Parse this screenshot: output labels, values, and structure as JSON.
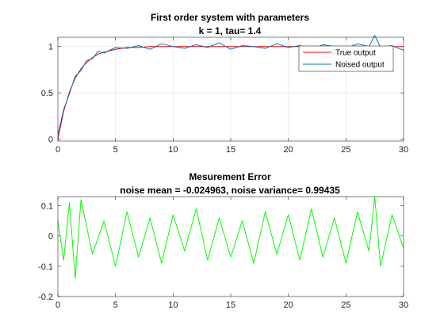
{
  "chart_data": [
    {
      "type": "line",
      "title": "First order system with parameters",
      "subtitle": "k = 1, tau= 1.4",
      "xlabel": "",
      "ylabel": "",
      "xlim": [
        0,
        30
      ],
      "ylim": [
        -0.02,
        1.1
      ],
      "xticks": [
        0,
        5,
        10,
        15,
        20,
        25,
        30
      ],
      "yticks": [
        0,
        0.5,
        1
      ],
      "grid": true,
      "legend_position": "top-right",
      "model": {
        "k": 1,
        "tau": 1.4
      },
      "series": [
        {
          "name": "True output",
          "color": "#ff0000",
          "x": [
            0,
            0.5,
            1,
            1.5,
            2,
            2.5,
            3,
            3.5,
            4,
            5,
            6,
            7,
            8,
            10,
            12,
            15,
            20,
            25,
            30
          ],
          "values": [
            0,
            0.3,
            0.51,
            0.66,
            0.76,
            0.83,
            0.88,
            0.92,
            0.94,
            0.97,
            0.99,
            0.99,
            1.0,
            1.0,
            1.0,
            1.0,
            1.0,
            1.0,
            1.0
          ]
        },
        {
          "name": "Noised output",
          "color": "#0072bd",
          "x": [
            0,
            0.5,
            1,
            1.5,
            2,
            2.5,
            3,
            3.5,
            4,
            5,
            6,
            7,
            8,
            9,
            10,
            11,
            12,
            13,
            14,
            15,
            16,
            17,
            18,
            19,
            20,
            21,
            22,
            23,
            24,
            25,
            26,
            27,
            27.5,
            28,
            29,
            30
          ],
          "values": [
            0.05,
            0.32,
            0.49,
            0.68,
            0.74,
            0.85,
            0.87,
            0.95,
            0.93,
            0.99,
            0.98,
            1.01,
            0.97,
            1.03,
            1.0,
            0.98,
            1.02,
            0.99,
            1.04,
            0.97,
            1.01,
            1.0,
            0.98,
            1.03,
            0.99,
            1.01,
            0.97,
            1.02,
            1.0,
            0.98,
            1.03,
            1.0,
            1.12,
            0.99,
            1.01,
            0.96
          ]
        }
      ]
    },
    {
      "type": "line",
      "title": "Mesurement Error",
      "subtitle": "noise mean = -0.024963, noise variance= 0.99435",
      "xlabel": "",
      "ylabel": "",
      "xlim": [
        0,
        30
      ],
      "ylim": [
        -0.2,
        0.13
      ],
      "xticks": [
        0,
        5,
        10,
        15,
        20,
        25,
        30
      ],
      "yticks": [
        -0.2,
        -0.1,
        0,
        0.1
      ],
      "grid": false,
      "series": [
        {
          "color": "#00ff00",
          "x": [
            0,
            0.5,
            1,
            1.5,
            2,
            3,
            4,
            5,
            6,
            7,
            8,
            9,
            10,
            11,
            12,
            13,
            14,
            15,
            16,
            17,
            18,
            19,
            20,
            21,
            22,
            23,
            24,
            25,
            26,
            27,
            27.5,
            28,
            29,
            30
          ],
          "values": [
            0.05,
            -0.08,
            0.11,
            -0.14,
            0.12,
            -0.06,
            0.05,
            -0.1,
            0.08,
            -0.07,
            0.06,
            -0.09,
            0.07,
            -0.05,
            0.09,
            -0.08,
            0.06,
            -0.07,
            0.05,
            -0.09,
            0.08,
            -0.06,
            0.07,
            -0.08,
            0.09,
            -0.07,
            0.06,
            -0.09,
            0.08,
            -0.05,
            0.13,
            -0.1,
            0.07,
            -0.04
          ]
        }
      ]
    }
  ]
}
